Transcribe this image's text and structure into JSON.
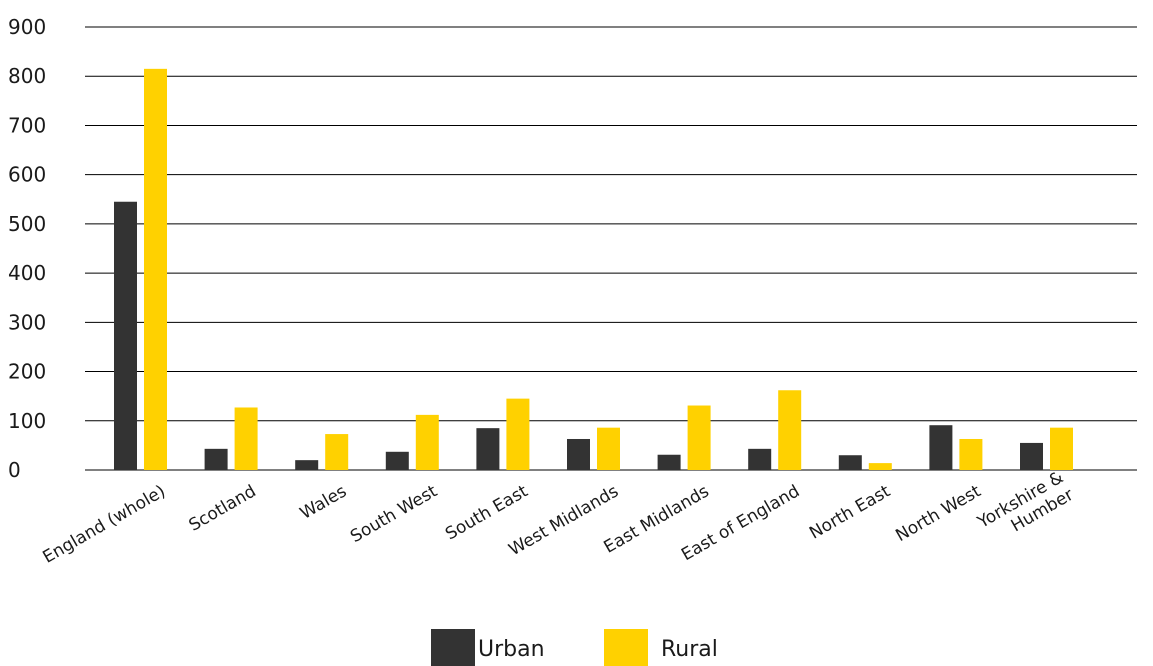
{
  "colors": {
    "urban": "#333333",
    "rural": "#ffd100",
    "grid": "#000000",
    "text": "#1a1a1a"
  },
  "chart_data": {
    "type": "bar",
    "title": "",
    "xlabel": "",
    "ylabel": "",
    "ylim": [
      0,
      900
    ],
    "yticks": [
      "0",
      "100",
      "200",
      "300",
      "400",
      "500",
      "600",
      "700",
      "800",
      "900"
    ],
    "grid": true,
    "legend_position": "bottom-center",
    "categories": [
      [
        "England (whole)"
      ],
      [
        "Scotland"
      ],
      [
        "Wales"
      ],
      [
        "South West"
      ],
      [
        "South East"
      ],
      [
        "West Midlands"
      ],
      [
        "East Midlands"
      ],
      [
        "East of England"
      ],
      [
        "North East"
      ],
      [
        "North West"
      ],
      [
        "Yorkshire &",
        "Humber"
      ]
    ],
    "series": [
      {
        "name": "Urban",
        "color": "#333333",
        "values": [
          545,
          43,
          20,
          37,
          85,
          63,
          31,
          43,
          30,
          91,
          55
        ]
      },
      {
        "name": "Rural",
        "color": "#ffd100",
        "values": [
          815,
          127,
          73,
          112,
          145,
          86,
          131,
          162,
          14,
          63,
          86
        ]
      }
    ]
  }
}
